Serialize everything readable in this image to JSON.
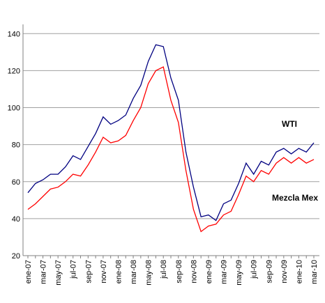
{
  "chart_data": {
    "type": "line",
    "categories": [
      "ene-07",
      null,
      "mar-07",
      null,
      "may-07",
      null,
      "jul-07",
      null,
      "sep-07",
      null,
      "nov-07",
      null,
      "ene-08",
      null,
      "mar-08",
      null,
      "may-08",
      null,
      "jul-08",
      null,
      "sep-08",
      null,
      "nov-08",
      null,
      "ene-09",
      null,
      "mar-09",
      null,
      "may-09",
      null,
      "jul-09",
      null,
      "sep-09",
      null,
      "nov-09",
      null,
      "ene-10",
      null,
      "mar-10"
    ],
    "series": [
      {
        "name": "WTI",
        "color": "#000080",
        "values": [
          54,
          59,
          61,
          64,
          64,
          68,
          74,
          72,
          79,
          86,
          95,
          91,
          93,
          96,
          105,
          112,
          125,
          134,
          133,
          116,
          104,
          76,
          57,
          41,
          42,
          39,
          48,
          50,
          59,
          70,
          64,
          71,
          69,
          76,
          78,
          75,
          78,
          76,
          81
        ]
      },
      {
        "name": "Mezcla Mex",
        "color": "#ff0000",
        "values": [
          45,
          48,
          52,
          56,
          57,
          60,
          64,
          63,
          69,
          76,
          84,
          81,
          82,
          85,
          93,
          100,
          113,
          120,
          122,
          104,
          92,
          66,
          45,
          33,
          36,
          37,
          42,
          44,
          53,
          63,
          60,
          66,
          64,
          70,
          73,
          70,
          73,
          70,
          72
        ]
      }
    ],
    "ylim": [
      20,
      145
    ],
    "yticks": [
      20,
      40,
      60,
      80,
      100,
      120,
      140
    ],
    "grid": true
  }
}
